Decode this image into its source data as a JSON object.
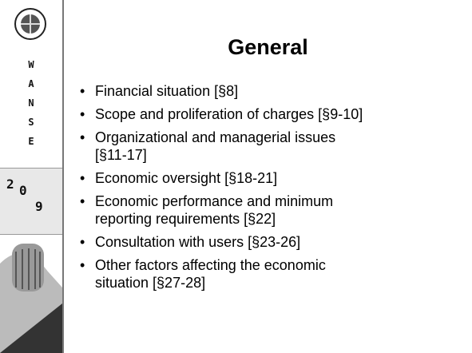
{
  "sidebar": {
    "letters": [
      "W",
      "A",
      "N",
      "S",
      "E"
    ],
    "year": [
      "2",
      "0",
      "9"
    ]
  },
  "title": "General",
  "bullets": [
    [
      "Financial situation [§8]"
    ],
    [
      "Scope and proliferation of charges [§9-10]"
    ],
    [
      "Organizational and managerial issues",
      "[§11-17]"
    ],
    [
      "Economic oversight [§18-21]"
    ],
    [
      "Economic performance and minimum",
      "reporting requirements [§22]"
    ],
    [
      "Consultation with users [§23-26]"
    ],
    [
      "Other factors affecting the economic",
      "situation [§27-28]"
    ]
  ]
}
